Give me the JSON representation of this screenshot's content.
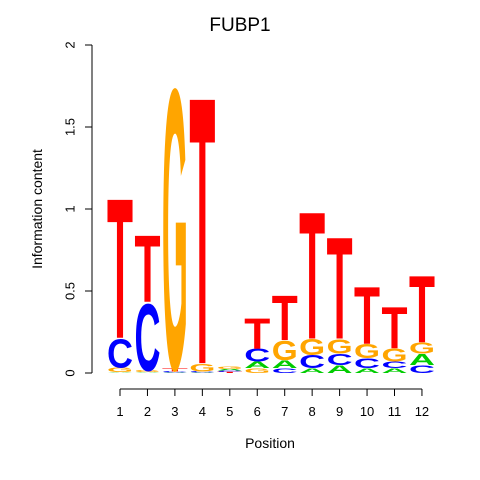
{
  "chart_data": {
    "type": "sequence-logo",
    "title": "FUBP1",
    "xlabel": "Position",
    "ylabel": "Information content",
    "ylim": [
      0,
      2
    ],
    "yticks": [
      "0",
      "0.5",
      "1",
      "1.5",
      "2"
    ],
    "positions": [
      "1",
      "2",
      "3",
      "4",
      "5",
      "6",
      "7",
      "8",
      "9",
      "10",
      "11",
      "12"
    ],
    "colors": {
      "A": "#00cc00",
      "C": "#0000ff",
      "G": "#ffa500",
      "T": "#ff0000"
    },
    "stacks": [
      [
        {
          "base": "A",
          "height": 0.005
        },
        {
          "base": "G",
          "height": 0.03
        },
        {
          "base": "C",
          "height": 0.18
        },
        {
          "base": "T",
          "height": 0.88
        }
      ],
      [
        {
          "base": "A",
          "height": 0.005
        },
        {
          "base": "G",
          "height": 0.01
        },
        {
          "base": "C",
          "height": 0.42
        },
        {
          "base": "T",
          "height": 0.42
        }
      ],
      [
        {
          "base": "A",
          "height": 0.003
        },
        {
          "base": "C",
          "height": 0.007
        },
        {
          "base": "T",
          "height": 0.02
        },
        {
          "base": "G",
          "height": 1.76
        }
      ],
      [
        {
          "base": "A",
          "height": 0.003
        },
        {
          "base": "C",
          "height": 0.007
        },
        {
          "base": "G",
          "height": 0.05
        },
        {
          "base": "T",
          "height": 1.68
        }
      ],
      [
        {
          "base": "T",
          "height": 0.006
        },
        {
          "base": "C",
          "height": 0.008
        },
        {
          "base": "A",
          "height": 0.01
        },
        {
          "base": "G",
          "height": 0.016
        }
      ],
      [
        {
          "base": "G",
          "height": 0.03
        },
        {
          "base": "A",
          "height": 0.04
        },
        {
          "base": "C",
          "height": 0.08
        },
        {
          "base": "T",
          "height": 0.19
        }
      ],
      [
        {
          "base": "C",
          "height": 0.03
        },
        {
          "base": "A",
          "height": 0.05
        },
        {
          "base": "G",
          "height": 0.12
        },
        {
          "base": "T",
          "height": 0.28
        }
      ],
      [
        {
          "base": "A",
          "height": 0.03
        },
        {
          "base": "C",
          "height": 0.08
        },
        {
          "base": "G",
          "height": 0.1
        },
        {
          "base": "T",
          "height": 0.8
        }
      ],
      [
        {
          "base": "A",
          "height": 0.05
        },
        {
          "base": "C",
          "height": 0.07
        },
        {
          "base": "G",
          "height": 0.09
        },
        {
          "base": "T",
          "height": 0.64
        }
      ],
      [
        {
          "base": "A",
          "height": 0.03
        },
        {
          "base": "C",
          "height": 0.06
        },
        {
          "base": "G",
          "height": 0.09
        },
        {
          "base": "T",
          "height": 0.36
        }
      ],
      [
        {
          "base": "A",
          "height": 0.03
        },
        {
          "base": "C",
          "height": 0.04
        },
        {
          "base": "G",
          "height": 0.08
        },
        {
          "base": "T",
          "height": 0.26
        }
      ],
      [
        {
          "base": "C",
          "height": 0.05
        },
        {
          "base": "A",
          "height": 0.07
        },
        {
          "base": "G",
          "height": 0.07
        },
        {
          "base": "T",
          "height": 0.42
        }
      ]
    ]
  }
}
